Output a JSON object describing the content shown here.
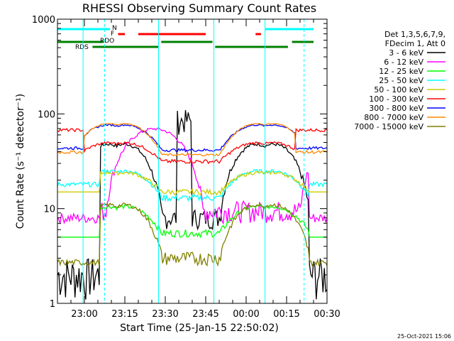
{
  "chart_data": {
    "type": "line",
    "title": "RHESSI Observing Summary Count Rates",
    "xlabel": "Start Time (25-Jan-15 22:50:02)",
    "ylabel": "Count Rate (s⁻¹ detector⁻¹)",
    "ylog": true,
    "ylim": [
      1,
      1000
    ],
    "xlim_minutes": [
      0,
      100
    ],
    "x_ticks": [
      {
        "label": "23:00",
        "minute": 10
      },
      {
        "label": "23:15",
        "minute": 25
      },
      {
        "label": "23:30",
        "minute": 40
      },
      {
        "label": "23:45",
        "minute": 55
      },
      {
        "label": "00:00",
        "minute": 70
      },
      {
        "label": "00:15",
        "minute": 85
      },
      {
        "label": "00:30",
        "minute": 100
      }
    ],
    "y_ticks": [
      {
        "label": "1",
        "value": 1
      },
      {
        "label": "10",
        "value": 10
      },
      {
        "label": "100",
        "value": 100
      },
      {
        "label": "1000",
        "value": 1000
      }
    ],
    "legend_header": [
      "Det 1,3,5,6,7,9,",
      "FDecim 1, Att 0"
    ],
    "legend_placement": "right",
    "series": [
      {
        "name": "3 - 6 keV",
        "color": "#000000"
      },
      {
        "name": "6 - 12 keV",
        "color": "#ff00ff"
      },
      {
        "name": "12 - 25 keV",
        "color": "#00ff00"
      },
      {
        "name": "25 - 50 keV",
        "color": "#00ffff"
      },
      {
        "name": "50 - 100 keV",
        "color": "#cccc00"
      },
      {
        "name": "100 - 300 keV",
        "color": "#ff0000"
      },
      {
        "name": "300 - 800 keV",
        "color": "#0000ff"
      },
      {
        "name": "800 - 7000 keV",
        "color": "#ff8800"
      },
      {
        "name": "7000 - 15000 keV",
        "color": "#808000"
      }
    ],
    "flags": [
      {
        "label": "N",
        "color": "#00ffff",
        "segments": [
          [
            0,
            19.5
          ],
          [
            77,
            95
          ]
        ]
      },
      {
        "label": "F",
        "color": "#ff0000",
        "segments": [
          [
            22.5,
            25
          ],
          [
            30,
            55
          ],
          [
            73.5,
            75.5
          ]
        ]
      },
      {
        "label": "RDO",
        "color": "#008000",
        "segments": [
          [
            0,
            17
          ],
          [
            38.5,
            57.5
          ],
          [
            87,
            95
          ]
        ]
      },
      {
        "label": "RDS",
        "color": "#008000",
        "segments": [
          [
            13,
            37.5
          ],
          [
            58.5,
            85.5
          ]
        ]
      }
    ],
    "saa_boundaries_minutes": [
      17.5,
      91.5
    ],
    "night_boundaries_minutes": [
      9.5,
      37.5,
      58,
      77
    ]
  },
  "footer": {
    "timestamp": "25-Oct-2021 15:06"
  }
}
